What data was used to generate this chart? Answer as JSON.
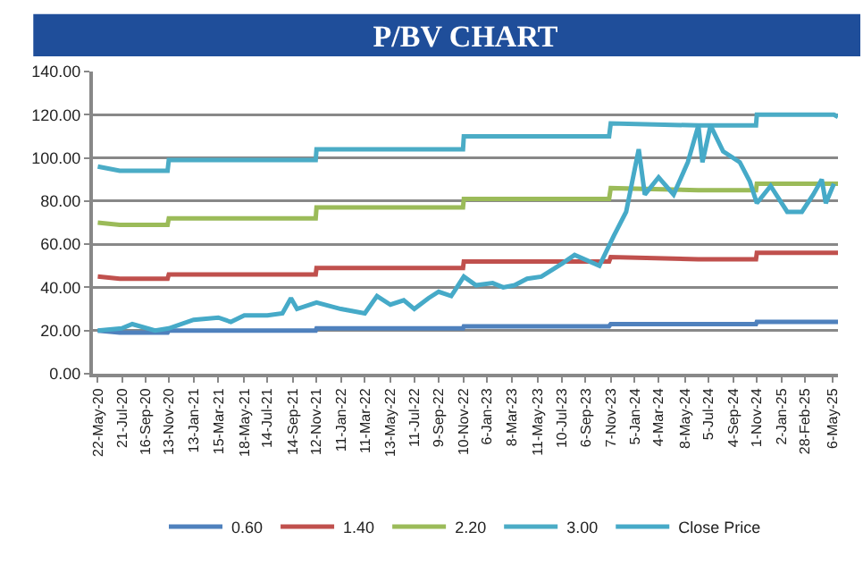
{
  "chart_data": {
    "type": "line",
    "title": "P/BV CHART",
    "xlim": [
      "2020-05-10",
      "2025-05-20"
    ],
    "xticks": [
      {
        "value": "2020-05-22",
        "label": "22-May-20"
      },
      {
        "value": "2020-07-21",
        "label": "21-Jul-20"
      },
      {
        "value": "2020-09-16",
        "label": "16-Sep-20"
      },
      {
        "value": "2020-11-13",
        "label": "13-Nov-20"
      },
      {
        "value": "2021-01-13",
        "label": "13-Jan-21"
      },
      {
        "value": "2021-03-15",
        "label": "15-Mar-21"
      },
      {
        "value": "2021-05-18",
        "label": "18-May-21"
      },
      {
        "value": "2021-07-14",
        "label": "14-Jul-21"
      },
      {
        "value": "2021-09-14",
        "label": "14-Sep-21"
      },
      {
        "value": "2021-11-12",
        "label": "12-Nov-21"
      },
      {
        "value": "2022-01-11",
        "label": "11-Jan-22"
      },
      {
        "value": "2022-03-11",
        "label": "11-Mar-22"
      },
      {
        "value": "2022-05-13",
        "label": "13-May-22"
      },
      {
        "value": "2022-07-11",
        "label": "11-Jul-22"
      },
      {
        "value": "2022-09-09",
        "label": "9-Sep-22"
      },
      {
        "value": "2022-11-10",
        "label": "10-Nov-22"
      },
      {
        "value": "2023-01-06",
        "label": "6-Jan-23"
      },
      {
        "value": "2023-03-08",
        "label": "8-Mar-23"
      },
      {
        "value": "2023-05-11",
        "label": "11-May-23"
      },
      {
        "value": "2023-07-10",
        "label": "10-Jul-23"
      },
      {
        "value": "2023-09-06",
        "label": "6-Sep-23"
      },
      {
        "value": "2023-11-07",
        "label": "7-Nov-23"
      },
      {
        "value": "2024-01-05",
        "label": "5-Jan-24"
      },
      {
        "value": "2024-03-04",
        "label": "4-Mar-24"
      },
      {
        "value": "2024-05-08",
        "label": "8-May-24"
      },
      {
        "value": "2024-07-05",
        "label": "5-Jul-24"
      },
      {
        "value": "2024-09-04",
        "label": "4-Sep-24"
      },
      {
        "value": "2024-11-01",
        "label": "1-Nov-24"
      },
      {
        "value": "2025-01-02",
        "label": "2-Jan-25"
      },
      {
        "value": "2025-02-28",
        "label": "28-Feb-25"
      },
      {
        "value": "2025-05-06",
        "label": "6-May-25"
      }
    ],
    "ylim": [
      0,
      140
    ],
    "yticks": [
      {
        "value": 0,
        "label": "0.00"
      },
      {
        "value": 20,
        "label": "20.00"
      },
      {
        "value": 40,
        "label": "40.00"
      },
      {
        "value": 60,
        "label": "60.00"
      },
      {
        "value": 80,
        "label": "80.00"
      },
      {
        "value": 100,
        "label": "100.00"
      },
      {
        "value": 120,
        "label": "120.00"
      },
      {
        "value": 140,
        "label": "140.00"
      }
    ],
    "grid": "y",
    "legend": "bottom",
    "marker": "none",
    "line_style": "solid",
    "series": [
      {
        "name": "0.60",
        "color": "#4f81bd",
        "x": [
          "2020-05-22",
          "2020-07-15",
          "2020-11-10",
          "2020-11-13",
          "2021-11-10",
          "2021-11-12",
          "2022-11-08",
          "2022-11-10",
          "2023-11-03",
          "2023-11-07",
          "2024-10-30",
          "2024-11-01",
          "2025-05-20"
        ],
        "values": [
          20,
          19,
          19,
          20,
          20,
          21,
          21,
          22,
          22,
          23,
          23,
          24,
          24
        ]
      },
      {
        "name": "1.40",
        "color": "#c0504d",
        "x": [
          "2020-05-22",
          "2020-07-15",
          "2020-11-10",
          "2020-11-13",
          "2021-11-10",
          "2021-11-12",
          "2022-11-08",
          "2022-11-10",
          "2023-11-03",
          "2023-11-07",
          "2024-06-10",
          "2024-10-30",
          "2024-11-01",
          "2025-05-20"
        ],
        "values": [
          45,
          44,
          44,
          46,
          46,
          49,
          49,
          52,
          52,
          54,
          53,
          53,
          56,
          56
        ]
      },
      {
        "name": "2.20",
        "color": "#9bbb59",
        "x": [
          "2020-05-22",
          "2020-07-15",
          "2020-11-10",
          "2020-11-13",
          "2021-11-10",
          "2021-11-12",
          "2022-11-08",
          "2022-11-10",
          "2023-11-03",
          "2023-11-07",
          "2024-06-10",
          "2024-10-30",
          "2024-11-01",
          "2025-05-20"
        ],
        "values": [
          70,
          69,
          69,
          72,
          72,
          77,
          77,
          81,
          81,
          86,
          85,
          85,
          88,
          88
        ]
      },
      {
        "name": "3.00",
        "color": "#4bacc6",
        "x": [
          "2020-05-22",
          "2020-07-15",
          "2020-11-10",
          "2020-11-13",
          "2021-11-10",
          "2021-11-12",
          "2022-11-08",
          "2022-11-10",
          "2023-11-03",
          "2023-11-07",
          "2024-06-10",
          "2024-10-30",
          "2024-11-01",
          "2025-05-10",
          "2025-05-20"
        ],
        "values": [
          96,
          94,
          94,
          99,
          99,
          104,
          104,
          110,
          110,
          116,
          115,
          115,
          120,
          120,
          119
        ]
      },
      {
        "name": "Close Price",
        "color": "#46aac8",
        "x": [
          "2020-05-22",
          "2020-07-20",
          "2020-08-15",
          "2020-10-10",
          "2020-11-13",
          "2021-01-13",
          "2021-03-15",
          "2021-04-15",
          "2021-05-18",
          "2021-07-14",
          "2021-08-20",
          "2021-09-10",
          "2021-09-25",
          "2021-11-12",
          "2022-01-11",
          "2022-03-11",
          "2022-04-10",
          "2022-05-13",
          "2022-06-15",
          "2022-07-11",
          "2022-08-15",
          "2022-09-09",
          "2022-10-10",
          "2022-11-10",
          "2022-12-10",
          "2023-01-20",
          "2023-02-15",
          "2023-03-15",
          "2023-04-15",
          "2023-05-20",
          "2023-07-10",
          "2023-08-10",
          "2023-10-10",
          "2023-11-15",
          "2023-12-15",
          "2024-01-15",
          "2024-01-30",
          "2024-03-04",
          "2024-04-10",
          "2024-05-15",
          "2024-06-10",
          "2024-06-20",
          "2024-07-10",
          "2024-08-10",
          "2024-09-20",
          "2024-10-15",
          "2024-11-01",
          "2024-12-05",
          "2025-01-15",
          "2025-02-20",
          "2025-03-20",
          "2025-04-10",
          "2025-04-20",
          "2025-05-10"
        ],
        "values": [
          20,
          21,
          23,
          20,
          21,
          25,
          26,
          24,
          27,
          27,
          28,
          35,
          30,
          33,
          30,
          28,
          36,
          32,
          34,
          30,
          35,
          38,
          36,
          45,
          41,
          42,
          40,
          41,
          44,
          45,
          51,
          55,
          50,
          64,
          75,
          104,
          83,
          91,
          83,
          98,
          115,
          98,
          115,
          103,
          98,
          89,
          79,
          87,
          75,
          75,
          83,
          90,
          79,
          88
        ]
      }
    ]
  }
}
